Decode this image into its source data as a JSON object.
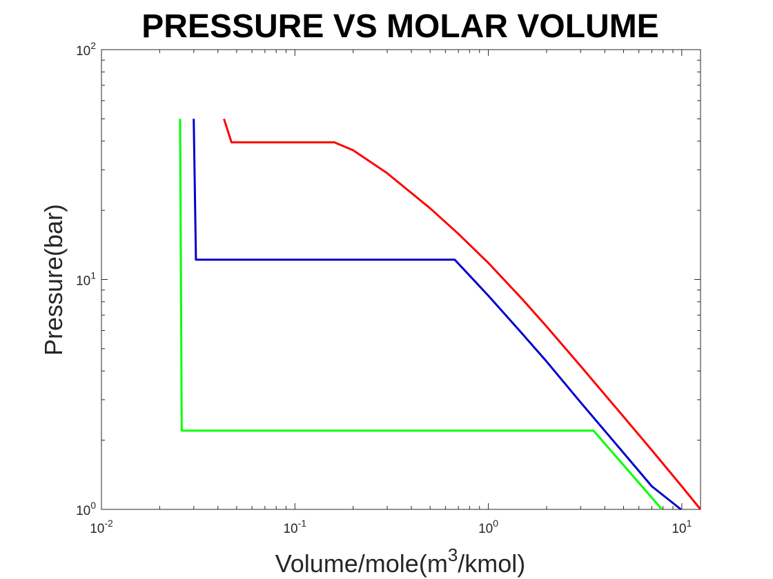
{
  "chart_data": {
    "type": "line",
    "title": "PRESSURE VS MOLAR VOLUME",
    "xlabel_parts": [
      "Volume/mole(m",
      "3",
      "/kmol)"
    ],
    "ylabel": "Pressure(bar)",
    "x_scale": "log",
    "y_scale": "log",
    "xlim": [
      0.01,
      12.5
    ],
    "ylim": [
      1,
      100
    ],
    "x_ticks": [
      {
        "value": 0.01,
        "base": "10",
        "exp": "-2"
      },
      {
        "value": 0.1,
        "base": "10",
        "exp": "-1"
      },
      {
        "value": 1,
        "base": "10",
        "exp": "0"
      },
      {
        "value": 10,
        "base": "10",
        "exp": "1"
      }
    ],
    "y_ticks": [
      {
        "value": 1,
        "base": "10",
        "exp": "0"
      },
      {
        "value": 10,
        "base": "10",
        "exp": "1"
      },
      {
        "value": 100,
        "base": "10",
        "exp": "2"
      }
    ],
    "grid": false,
    "legend": "none",
    "series": [
      {
        "color": "#00ff00",
        "points": [
          [
            0.0255,
            50
          ],
          [
            0.026,
            2.2
          ],
          [
            3.5,
            2.2
          ],
          [
            7.9,
            1.0
          ]
        ]
      },
      {
        "color": "#0000cc",
        "points": [
          [
            0.03,
            50
          ],
          [
            0.0308,
            12.2
          ],
          [
            0.67,
            12.2
          ],
          [
            0.8,
            10.4
          ],
          [
            1.0,
            8.5
          ],
          [
            1.5,
            5.8
          ],
          [
            2.0,
            4.4
          ],
          [
            3.0,
            2.92
          ],
          [
            5.0,
            1.76
          ],
          [
            7.0,
            1.26
          ],
          [
            9.9,
            1.0
          ]
        ]
      },
      {
        "color": "#ff0000",
        "points": [
          [
            0.043,
            50
          ],
          [
            0.047,
            39.5
          ],
          [
            0.16,
            39.5
          ],
          [
            0.2,
            36.5
          ],
          [
            0.3,
            29.0
          ],
          [
            0.5,
            20.4
          ],
          [
            0.7,
            15.8
          ],
          [
            1.0,
            11.8
          ],
          [
            1.5,
            8.2
          ],
          [
            2.0,
            6.25
          ],
          [
            3.0,
            4.2
          ],
          [
            5.0,
            2.53
          ],
          [
            7.0,
            1.81
          ],
          [
            10.0,
            1.26
          ],
          [
            12.5,
            1.0
          ]
        ]
      }
    ]
  }
}
